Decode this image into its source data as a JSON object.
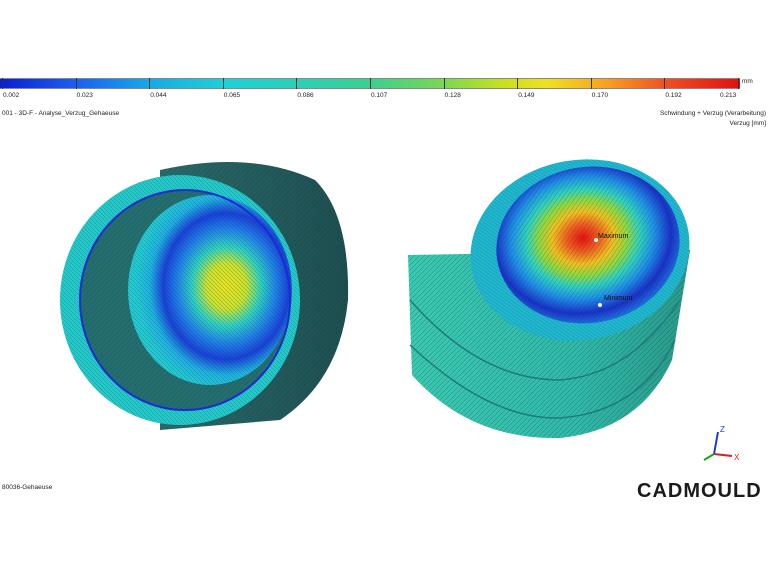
{
  "legend": {
    "ticks": [
      "0.002",
      "0.023",
      "0.044",
      "0.065",
      "0.086",
      "0.107",
      "0.128",
      "0.149",
      "0.170",
      "0.192",
      "0.213"
    ],
    "unit": "mm"
  },
  "header": {
    "left_title": "001 - 3D-F - Analyse_Verzug_Gehaeuse",
    "right_title": "Schwindung + Verzug (Verarbeitung)",
    "right_subtitle": "Verzug [mm]"
  },
  "model": {
    "maximum_label": "Maximum",
    "minimum_label": "Minimum"
  },
  "footer": {
    "part_name": "80036-Gehaeuse",
    "brand": "CADMOULD"
  },
  "axes": {
    "z": "Z",
    "x": "X"
  }
}
